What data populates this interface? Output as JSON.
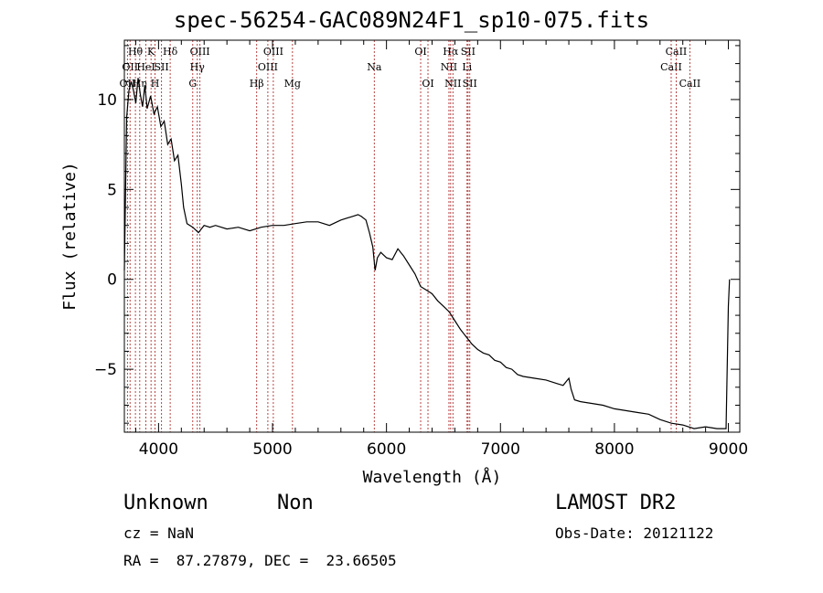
{
  "chart_data": {
    "type": "line",
    "title": "spec-56254-GAC089N24F1_sp10-075.fits",
    "xlabel": "Wavelength (Å)",
    "ylabel": "Flux (relative)",
    "xlim": [
      3700,
      9100
    ],
    "ylim": [
      -8.5,
      13.3
    ],
    "xticks": [
      4000,
      5000,
      6000,
      7000,
      8000,
      9000
    ],
    "yticks": [
      -5,
      0,
      5,
      10
    ],
    "grid": false,
    "line_color": "#000000",
    "marker_line_color": "#b03030",
    "series": [
      {
        "x": [
          3700,
          3720,
          3740,
          3760,
          3780,
          3800,
          3820,
          3840,
          3860,
          3880,
          3900,
          3930,
          3960,
          3990,
          4020,
          4050,
          4080,
          4110,
          4140,
          4170,
          4200,
          4220,
          4250,
          4300,
          4350,
          4400,
          4450,
          4500,
          4600,
          4700,
          4800,
          4900,
          5000,
          5100,
          5200,
          5300,
          5400,
          5500,
          5600,
          5700,
          5750,
          5780,
          5820,
          5850,
          5880,
          5900,
          5920,
          5950,
          6000,
          6050,
          6100,
          6150,
          6200,
          6250,
          6300,
          6350,
          6400,
          6450,
          6500,
          6550,
          6600,
          6650,
          6700,
          6750,
          6800,
          6850,
          6900,
          6950,
          7000,
          7050,
          7100,
          7150,
          7200,
          7300,
          7400,
          7500,
          7550,
          7600,
          7620,
          7650,
          7700,
          7800,
          7900,
          8000,
          8100,
          8200,
          8300,
          8400,
          8500,
          8600,
          8700,
          8800,
          8900,
          8980,
          9000,
          9010
        ],
        "y": [
          0.5,
          9.0,
          10.5,
          11.0,
          10.5,
          9.8,
          11.2,
          10.3,
          9.6,
          10.8,
          9.5,
          10.2,
          9.2,
          9.6,
          8.5,
          8.8,
          7.5,
          7.8,
          6.6,
          6.9,
          5.3,
          4.0,
          3.1,
          2.9,
          2.6,
          3.0,
          2.9,
          3.0,
          2.8,
          2.9,
          2.7,
          2.9,
          3.0,
          3.0,
          3.1,
          3.2,
          3.2,
          3.0,
          3.3,
          3.5,
          3.6,
          3.5,
          3.3,
          2.6,
          1.8,
          0.5,
          1.2,
          1.5,
          1.2,
          1.1,
          1.7,
          1.3,
          0.8,
          0.3,
          -0.4,
          -0.6,
          -0.8,
          -1.2,
          -1.5,
          -1.8,
          -2.3,
          -2.8,
          -3.2,
          -3.6,
          -3.9,
          -4.1,
          -4.2,
          -4.5,
          -4.6,
          -4.9,
          -5.0,
          -5.3,
          -5.4,
          -5.5,
          -5.6,
          -5.8,
          -5.9,
          -5.5,
          -6.1,
          -6.7,
          -6.8,
          -6.9,
          -7.0,
          -7.2,
          -7.3,
          -7.4,
          -7.5,
          -7.8,
          -8.0,
          -8.1,
          -8.3,
          -8.2,
          -8.3,
          -8.3,
          -1.5,
          0.0
        ]
      }
    ],
    "line_markers": [
      {
        "x": 3727,
        "label": "OII",
        "row": 2
      },
      {
        "x": 3750,
        "label": "OII",
        "row": 1
      },
      {
        "x": 3797,
        "label": "Hθ",
        "row": 0
      },
      {
        "x": 3835,
        "label": "Hη",
        "row": 2
      },
      {
        "x": 3889,
        "label": "HeI",
        "row": 1
      },
      {
        "x": 3934,
        "label": "K",
        "row": 0
      },
      {
        "x": 3969,
        "label": "H",
        "row": 2
      },
      {
        "x": 4026,
        "label": "SII",
        "row": 1
      },
      {
        "x": 4102,
        "label": "Hδ",
        "row": 0
      },
      {
        "x": 4300,
        "label": "G",
        "row": 2
      },
      {
        "x": 4340,
        "label": "Hγ",
        "row": 1
      },
      {
        "x": 4363,
        "label": "OIII",
        "row": 0
      },
      {
        "x": 4861,
        "label": "Hβ",
        "row": 2
      },
      {
        "x": 4959,
        "label": "OIII",
        "row": 1
      },
      {
        "x": 5007,
        "label": "OIII",
        "row": 0
      },
      {
        "x": 5175,
        "label": "Mg",
        "row": 2
      },
      {
        "x": 5893,
        "label": "Na",
        "row": 1
      },
      {
        "x": 6300,
        "label": "OI",
        "row": 0
      },
      {
        "x": 6364,
        "label": "OI",
        "row": 2
      },
      {
        "x": 6548,
        "label": "NII",
        "row": 1
      },
      {
        "x": 6563,
        "label": "Hα",
        "row": 0
      },
      {
        "x": 6583,
        "label": "NII",
        "row": 2
      },
      {
        "x": 6707,
        "label": "Li",
        "row": 1
      },
      {
        "x": 6716,
        "label": "SII",
        "row": 0
      },
      {
        "x": 6731,
        "label": "SII",
        "row": 2
      },
      {
        "x": 8498,
        "label": "CaII",
        "row": 1
      },
      {
        "x": 8542,
        "label": "CaII",
        "row": 0
      },
      {
        "x": 8662,
        "label": "CaII",
        "row": 2
      }
    ]
  },
  "info": {
    "object_class": "Unknown",
    "subclass": "Non",
    "survey": "LAMOST DR2",
    "redshift_line": "cz = NaN",
    "obs_date_line": "Obs-Date: 20121122",
    "coords_line": "RA =  87.27879, DEC =  23.66505"
  }
}
